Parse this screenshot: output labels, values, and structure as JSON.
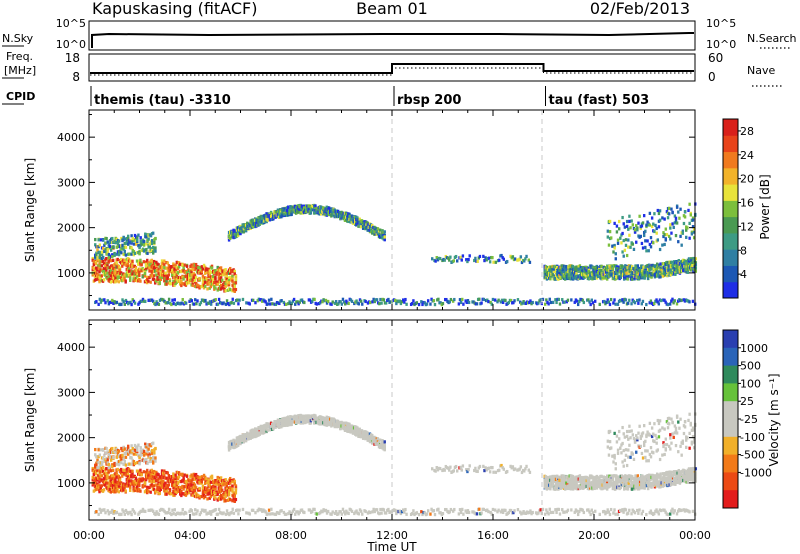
{
  "header": {
    "station": "Kapuskasing (fitACF)",
    "beam": "Beam 01",
    "date": "02/Feb/2013"
  },
  "top_panels": {
    "nsky_label": "N.Sky",
    "nsky_ticks": [
      "10^5",
      "10^0"
    ],
    "nsearch_label": "N.Search",
    "nsearch_ticks": [
      "10^5",
      "10^0"
    ],
    "freq_label_1": "Freq.",
    "freq_label_2": "[MHz]",
    "freq_ticks": [
      "18",
      "8"
    ],
    "nave_label": "Nave",
    "nave_ticks": [
      "60",
      "0"
    ],
    "cpid_label": "CPID",
    "cpid_segments": [
      {
        "start": 0,
        "label": "themis (tau) -3310"
      },
      {
        "start": 12,
        "label": "rbsp 200"
      },
      {
        "start": 18,
        "label": "tau (fast) 503"
      }
    ]
  },
  "colors": {
    "power": [
      "#1e2ee6",
      "#1c58b4",
      "#2f7fa3",
      "#3d9b84",
      "#4a9a52",
      "#7cbf3c",
      "#e8e33a",
      "#f2b32a",
      "#f07a1f",
      "#e8431a",
      "#d9201a"
    ],
    "velocity": [
      "#2a3fb0",
      "#2a64b8",
      "#2f8a5c",
      "#66c23a",
      "#c8c8c0",
      "#c8c8c0",
      "#f1b02a",
      "#f27a18",
      "#ec4a14",
      "#e31c1c"
    ],
    "frame": "#000000",
    "dashed_divider": "#c8c8c8"
  },
  "chart_data": [
    {
      "type": "heatmap",
      "name": "power",
      "ylabel": "Slant Range [km]",
      "xlabel": "Time UT",
      "xlim": [
        0,
        24
      ],
      "ylim": [
        180,
        4600
      ],
      "yticks": [
        "1000",
        "2000",
        "3000",
        "4000"
      ],
      "xticks": [
        "00:00",
        "04:00",
        "08:00",
        "12:00",
        "16:00",
        "20:00",
        "00:00"
      ],
      "colorbar_label": "Power [dB]",
      "colorbar_ticks": [
        "28",
        "24",
        "20",
        "16",
        "12",
        "8",
        "4"
      ],
      "colorbar_range": [
        0,
        30
      ]
    },
    {
      "type": "heatmap",
      "name": "velocity",
      "ylabel": "Slant Range [km]",
      "xlabel": "Time UT",
      "xlim": [
        0,
        24
      ],
      "ylim": [
        180,
        4600
      ],
      "yticks": [
        "1000",
        "2000",
        "3000",
        "4000"
      ],
      "xticks": [
        "00:00",
        "04:00",
        "08:00",
        "12:00",
        "16:00",
        "20:00",
        "00:00"
      ],
      "colorbar_label": "Velocity [m s⁻¹]",
      "colorbar_ticks": [
        "1000",
        "500",
        "100",
        "25",
        "-25",
        "-100",
        "-500",
        "-1000"
      ]
    }
  ]
}
